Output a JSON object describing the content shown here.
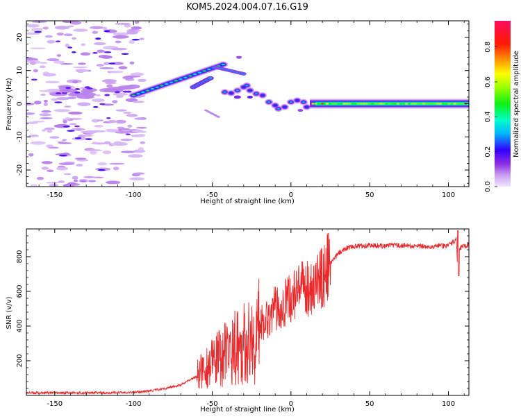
{
  "title": "KOM5.2024.004.07.16.G19",
  "chart_data": [
    {
      "type": "heatmap",
      "xlabel": "Height of straight line (km)",
      "ylabel": "Frequency (Hz)",
      "xlim": [
        -168,
        113
      ],
      "ylim": [
        -25,
        25
      ],
      "xticks": [
        -150,
        -100,
        -50,
        0,
        50,
        100
      ],
      "yticks": [
        -20,
        -10,
        0,
        10,
        20
      ],
      "colorbar": {
        "label": "Normalized spectral amplitude",
        "range": [
          0,
          0.95
        ],
        "ticks": [
          0.0,
          0.2,
          0.4,
          0.6,
          0.8
        ],
        "tick_labels": [
          "0.0",
          "0.2",
          "0.4",
          "0.6",
          "0.8"
        ],
        "colormap": "gist_rainbow_r"
      },
      "features": [
        {
          "name": "steady-carrier",
          "x_range": [
            15,
            113
          ],
          "frequency": 0,
          "amplitude": 0.55
        },
        {
          "name": "diagonal-band",
          "x_range": [
            -100,
            -40
          ],
          "frequency_range": [
            2,
            12
          ],
          "amplitude": 0.35
        },
        {
          "name": "transition-region",
          "x_range": [
            -40,
            12
          ],
          "frequency_range": [
            -2,
            12
          ],
          "amplitude": 0.25
        },
        {
          "name": "noise-scatter",
          "x_range": [
            -168,
            -95
          ],
          "frequency_range": [
            -25,
            25
          ],
          "amplitude": 0.08
        }
      ]
    },
    {
      "type": "line",
      "xlabel": "Height of straight line (km)",
      "ylabel": "SNR (v/v)",
      "xlim": [
        -168,
        113
      ],
      "ylim": [
        0,
        960
      ],
      "xticks": [
        -150,
        -100,
        -50,
        0,
        50,
        100
      ],
      "yticks": [
        200,
        400,
        600,
        800
      ],
      "color": "#e8282a",
      "series": [
        {
          "x": [
            -168,
            -150,
            -120,
            -100,
            -90,
            -80,
            -70,
            -60,
            -55,
            -50,
            -45,
            -40,
            -35,
            -30,
            -25,
            -22,
            -20,
            -15,
            -10,
            -5,
            0,
            5,
            10,
            15,
            20,
            25,
            30,
            35,
            40,
            50,
            60,
            70,
            80,
            90,
            100,
            105,
            106,
            107,
            110,
            113
          ],
          "y": [
            15,
            15,
            15,
            18,
            25,
            40,
            60,
            110,
            160,
            180,
            220,
            250,
            280,
            300,
            310,
            300,
            420,
            450,
            500,
            530,
            560,
            600,
            620,
            640,
            680,
            760,
            820,
            850,
            860,
            865,
            862,
            865,
            858,
            860,
            862,
            900,
            690,
            850,
            860,
            865
          ]
        }
      ]
    }
  ]
}
